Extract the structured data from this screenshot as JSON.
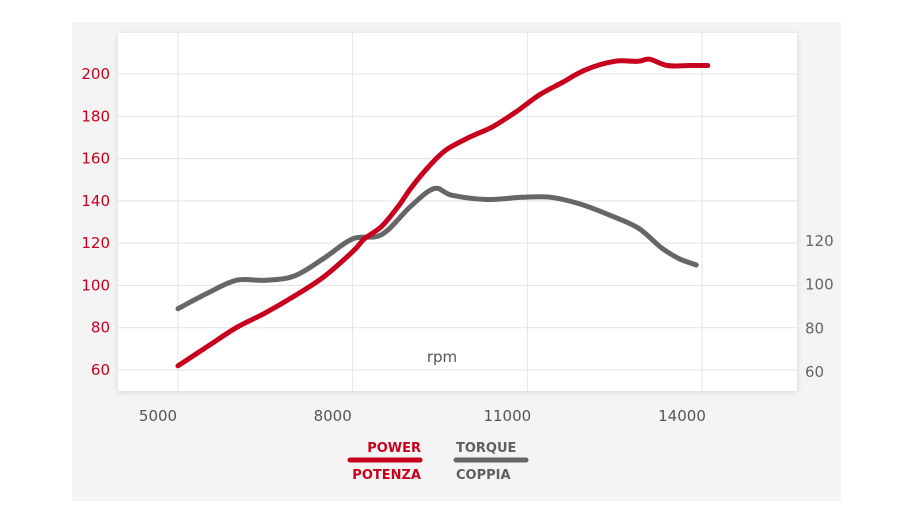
{
  "chart_data": {
    "type": "line",
    "xlabel": "rpm",
    "x_ticks": [
      5000,
      8000,
      11000,
      14000
    ],
    "y_left_ticks": [
      60,
      80,
      100,
      120,
      140,
      160,
      180,
      200
    ],
    "y_right_ticks": [
      60,
      80,
      100,
      120
    ],
    "grid": true,
    "legend_position": "bottom-center",
    "series": [
      {
        "name": "POWER",
        "name_alt": "POTENZA",
        "axis": "left",
        "color": "#c8001e",
        "points": [
          [
            5000,
            62
          ],
          [
            5500,
            71
          ],
          [
            6000,
            80
          ],
          [
            6500,
            87
          ],
          [
            7000,
            95
          ],
          [
            7500,
            104
          ],
          [
            8000,
            116
          ],
          [
            8200,
            122
          ],
          [
            8500,
            128
          ],
          [
            8800,
            138
          ],
          [
            9000,
            146
          ],
          [
            9300,
            156
          ],
          [
            9600,
            164
          ],
          [
            10000,
            170
          ],
          [
            10400,
            175
          ],
          [
            10800,
            182
          ],
          [
            11200,
            190
          ],
          [
            11600,
            196
          ],
          [
            12000,
            202
          ],
          [
            12500,
            206
          ],
          [
            12900,
            206
          ],
          [
            13100,
            207
          ],
          [
            13400,
            204
          ],
          [
            13800,
            204
          ],
          [
            14100,
            204
          ]
        ]
      },
      {
        "name": "TORQUE",
        "name_alt": "COPPIA",
        "axis": "right",
        "color": "#666666",
        "points": [
          [
            5000,
            89
          ],
          [
            5500,
            96
          ],
          [
            6000,
            102
          ],
          [
            6500,
            102
          ],
          [
            7000,
            104
          ],
          [
            7500,
            112
          ],
          [
            8000,
            121
          ],
          [
            8500,
            123
          ],
          [
            9000,
            136
          ],
          [
            9400,
            144
          ],
          [
            9700,
            141
          ],
          [
            10300,
            139
          ],
          [
            10900,
            140
          ],
          [
            11400,
            140
          ],
          [
            11900,
            137
          ],
          [
            12400,
            132
          ],
          [
            12900,
            126
          ],
          [
            13300,
            117
          ],
          [
            13600,
            112
          ],
          [
            13900,
            109
          ]
        ]
      }
    ]
  }
}
